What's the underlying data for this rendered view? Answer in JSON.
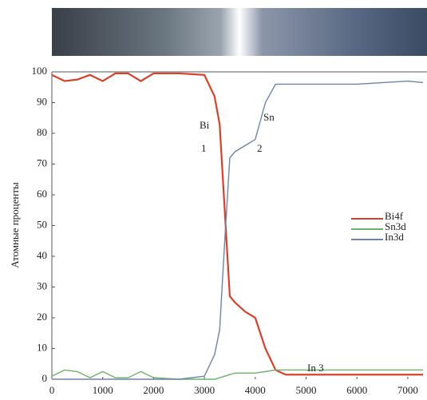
{
  "chart_data": {
    "type": "line",
    "ylabel": "Атомные проценты",
    "x": [
      0,
      250,
      500,
      750,
      1000,
      1250,
      1500,
      1750,
      2000,
      2500,
      3000,
      3200,
      3300,
      3400,
      3500,
      3600,
      3800,
      4000,
      4200,
      4400,
      4600,
      5000,
      6000,
      7000,
      7300
    ],
    "series": [
      {
        "name": "Bi4f",
        "color": "#d9402a",
        "values": [
          99,
          97,
          97.5,
          99,
          97,
          99.5,
          99.5,
          97,
          99.5,
          99.5,
          99,
          92,
          83,
          55,
          27,
          25,
          22,
          20,
          10,
          3,
          1.5,
          1.5,
          1.5,
          1.5,
          1.5
        ]
      },
      {
        "name": "Sn3d",
        "color": "#6fb06a",
        "values": [
          1,
          3,
          2.5,
          0.5,
          2.5,
          0.5,
          0.5,
          2.5,
          0.5,
          0,
          0,
          0,
          0.5,
          1,
          1.5,
          2,
          2,
          2,
          2.5,
          3,
          3,
          3,
          3,
          3,
          3
        ]
      },
      {
        "name": "In3d",
        "color": "#6d84a8",
        "values": [
          0,
          0,
          0,
          0,
          0,
          0,
          0,
          0,
          0,
          0,
          1,
          8,
          16,
          45,
          72,
          74,
          76,
          78,
          90,
          96,
          96,
          96,
          96,
          97,
          96.5
        ]
      }
    ],
    "xlim": [
      0,
      7300
    ],
    "ylim": [
      0,
      100
    ],
    "xticks": [
      0,
      1000,
      2000,
      3000,
      4000,
      5000,
      6000,
      7000
    ],
    "yticks": [
      0,
      10,
      20,
      30,
      40,
      50,
      60,
      70,
      80,
      90,
      100
    ],
    "annotations": [
      "Bi",
      "1",
      "Sn",
      "2",
      "In 3"
    ],
    "legend": "right"
  }
}
